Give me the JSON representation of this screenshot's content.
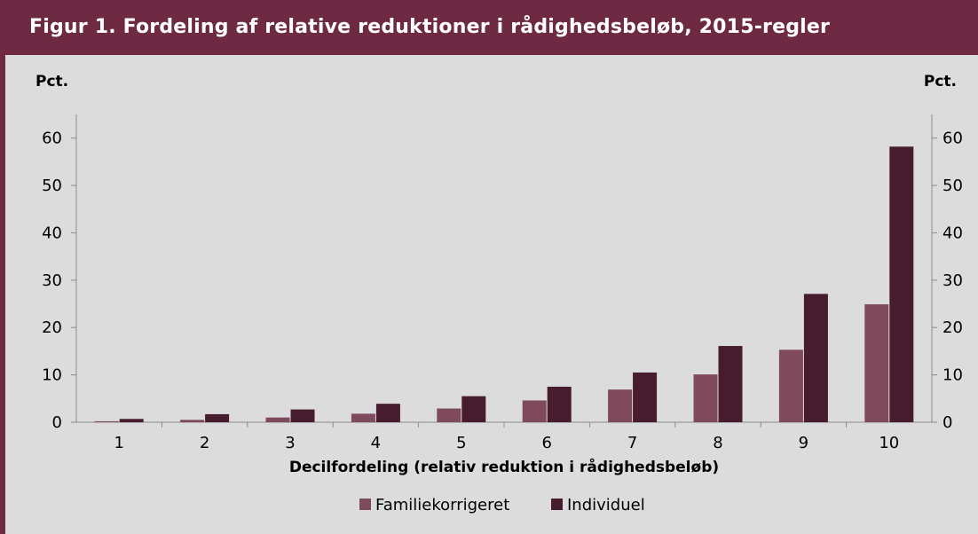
{
  "title": "Figur 1. Fordeling af relative reduktioner i rådighedsbeløb, 2015-regler",
  "colors": {
    "frame": "#6f2a43",
    "panel": "#dcdcdc",
    "familiekorrigeret": "#7f4a5c",
    "individuel": "#461c2e"
  },
  "chart_data": {
    "type": "bar",
    "title": "Figur 1. Fordeling af relative reduktioner i rådighedsbeløb, 2015-regler",
    "xlabel": "Decilfordeling (relativ reduktion i rådighedsbeløb)",
    "ylabel_left": "Pct.",
    "ylabel_right": "Pct.",
    "ylim": [
      0,
      65
    ],
    "yticks": [
      "0",
      "10",
      "20",
      "30",
      "40",
      "50",
      "60"
    ],
    "categories": [
      "1",
      "2",
      "3",
      "4",
      "5",
      "6",
      "7",
      "8",
      "9",
      "10"
    ],
    "series": [
      {
        "name": "Familiekorrigeret",
        "values": [
          0.2,
          0.5,
          1.0,
          1.8,
          2.9,
          4.6,
          6.9,
          10.1,
          15.3,
          24.9
        ]
      },
      {
        "name": "Individuel",
        "values": [
          0.7,
          1.7,
          2.7,
          3.9,
          5.5,
          7.5,
          10.5,
          16.1,
          27.1,
          58.2
        ]
      }
    ],
    "grid": false,
    "legend": "bottom"
  }
}
